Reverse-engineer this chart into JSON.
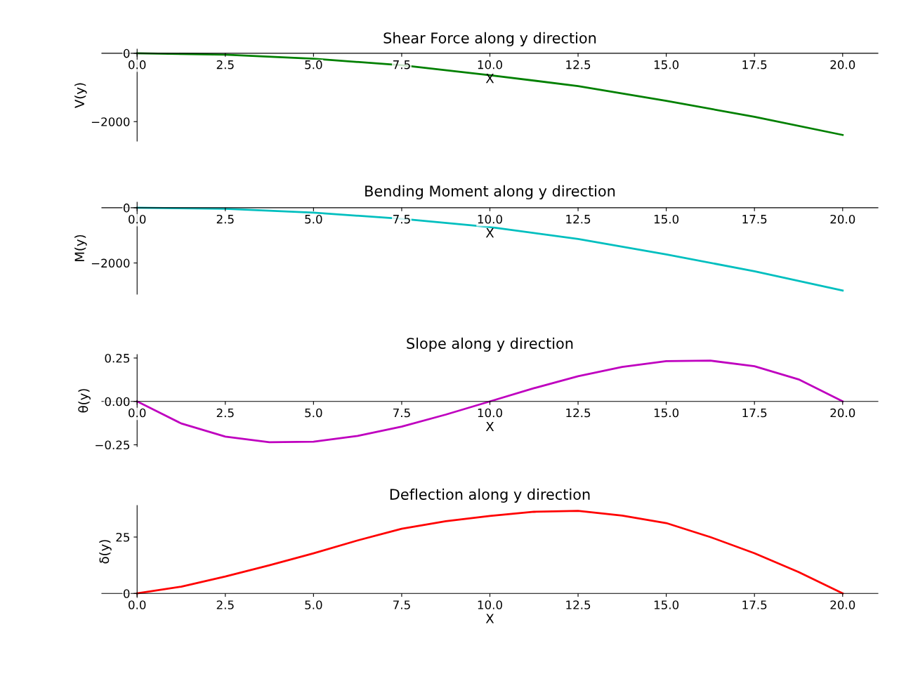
{
  "chart_data": [
    {
      "type": "line",
      "title": "Shear Force along y direction",
      "xlabel": "X",
      "ylabel": "V(y)",
      "x": [
        0,
        2.5,
        5,
        7.5,
        10,
        12.5,
        15,
        17.5,
        20
      ],
      "series": [
        {
          "color": "#008000",
          "values": [
            0,
            -40,
            -160,
            -350,
            -640,
            -960,
            -1390,
            -1860,
            -2390
          ]
        }
      ],
      "xlim": [
        -1,
        21
      ],
      "ylim": [
        -2570,
        120
      ],
      "xticks": [
        {
          "value": 0,
          "label": "0.0"
        },
        {
          "value": 2.5,
          "label": "2.5"
        },
        {
          "value": 5,
          "label": "5.0"
        },
        {
          "value": 7.5,
          "label": "7.5"
        },
        {
          "value": 10,
          "label": "10.0"
        },
        {
          "value": 12.5,
          "label": "12.5"
        },
        {
          "value": 15,
          "label": "15.0"
        },
        {
          "value": 17.5,
          "label": "17.5"
        },
        {
          "value": 20,
          "label": "20.0"
        }
      ],
      "yticks": [
        {
          "value": -2000,
          "label": "−2000"
        },
        0
      ],
      "grid": false,
      "legend": false
    },
    {
      "type": "line",
      "title": "Bending Moment along y direction",
      "xlabel": "X",
      "ylabel": "M(y)",
      "x": [
        0,
        2.5,
        5,
        7.5,
        10,
        12.5,
        15,
        17.5,
        20
      ],
      "series": [
        {
          "color": "#00bfbf",
          "values": [
            0,
            -40,
            -180,
            -400,
            -700,
            -1130,
            -1690,
            -2300,
            -3000
          ]
        }
      ],
      "xlim": [
        -1,
        21
      ],
      "ylim": [
        -3130,
        200
      ],
      "xticks": [
        {
          "value": 0,
          "label": "0.0"
        },
        {
          "value": 2.5,
          "label": "2.5"
        },
        {
          "value": 5,
          "label": "5.0"
        },
        {
          "value": 7.5,
          "label": "7.5"
        },
        {
          "value": 10,
          "label": "10.0"
        },
        {
          "value": 12.5,
          "label": "12.5"
        },
        {
          "value": 15,
          "label": "15.0"
        },
        {
          "value": 17.5,
          "label": "17.5"
        },
        {
          "value": 20,
          "label": "20.0"
        }
      ],
      "yticks": [
        {
          "value": -2000,
          "label": "−2000"
        },
        0
      ],
      "grid": false,
      "legend": false
    },
    {
      "type": "line",
      "title": "Slope along y direction",
      "xlabel": "X",
      "ylabel": "θ(y)",
      "x": [
        0,
        1.25,
        2.5,
        3.75,
        5,
        6.25,
        7.5,
        8.75,
        10,
        11.25,
        12.5,
        13.75,
        15,
        16.25,
        17.5,
        18.75,
        20
      ],
      "series": [
        {
          "color": "#bf00bf",
          "values": [
            0,
            -0.127,
            -0.203,
            -0.235,
            -0.232,
            -0.199,
            -0.145,
            -0.076,
            0,
            0.076,
            0.145,
            0.199,
            0.232,
            0.235,
            0.203,
            0.127,
            0
          ]
        }
      ],
      "xlim": [
        -1,
        21
      ],
      "ylim": [
        -0.26,
        0.27
      ],
      "xticks": [
        {
          "value": 0,
          "label": "0.0"
        },
        {
          "value": 2.5,
          "label": "2.5"
        },
        {
          "value": 5,
          "label": "5.0"
        },
        {
          "value": 7.5,
          "label": "7.5"
        },
        {
          "value": 10,
          "label": "10.0"
        },
        {
          "value": 12.5,
          "label": "12.5"
        },
        {
          "value": 15,
          "label": "15.0"
        },
        {
          "value": 17.5,
          "label": "17.5"
        },
        {
          "value": 20,
          "label": "20.0"
        }
      ],
      "yticks": [
        {
          "value": -0.25,
          "label": "−0.25"
        },
        {
          "value": 0,
          "label": "0.00"
        },
        {
          "value": 0.25,
          "label": "0.25"
        }
      ],
      "grid": false,
      "legend": false
    },
    {
      "type": "line",
      "title": "Deflection along y direction",
      "xlabel": "X",
      "ylabel": "δ(y)",
      "x": [
        0,
        1.25,
        2.5,
        3.75,
        5,
        6.25,
        7.5,
        8.75,
        10,
        11.25,
        12.5,
        13.75,
        15,
        16.25,
        17.5,
        18.75,
        20
      ],
      "series": [
        {
          "color": "#ff0000",
          "values": [
            0,
            3,
            7.5,
            12.5,
            17.8,
            23.5,
            28.7,
            32,
            34.4,
            36.2,
            36.6,
            34.5,
            31.2,
            25,
            17.8,
            9.5,
            0
          ]
        }
      ],
      "xlim": [
        -1,
        21
      ],
      "ylim": [
        -1.8,
        39
      ],
      "xticks": [
        {
          "value": 0,
          "label": "0.0"
        },
        {
          "value": 2.5,
          "label": "2.5"
        },
        {
          "value": 5,
          "label": "5.0"
        },
        {
          "value": 7.5,
          "label": "7.5"
        },
        {
          "value": 10,
          "label": "10.0"
        },
        {
          "value": 12.5,
          "label": "12.5"
        },
        {
          "value": 15,
          "label": "15.0"
        },
        {
          "value": 17.5,
          "label": "17.5"
        },
        {
          "value": 20,
          "label": "20.0"
        }
      ],
      "yticks": [
        0,
        25
      ],
      "grid": false,
      "legend": false
    }
  ]
}
